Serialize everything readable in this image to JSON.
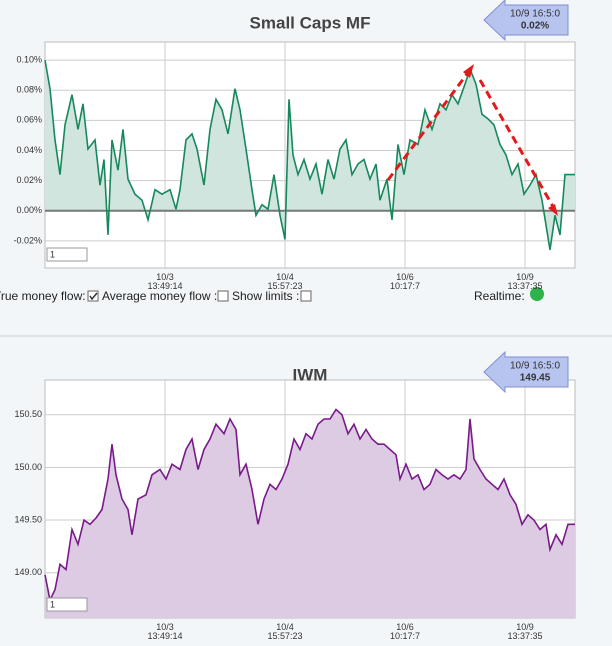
{
  "chart_data": [
    {
      "type": "area",
      "title": "Small Caps MF",
      "color": "#17885c",
      "fill": "#cfe5dd",
      "zero_line": true,
      "callout": {
        "time": "10/9 16:5:0",
        "value": "0.02%"
      },
      "input": "1",
      "xlim": [
        0,
        530
      ],
      "ylim": [
        -0.038,
        0.112
      ],
      "yticks": [
        {
          "value": -0.02,
          "label": "-0.02%"
        },
        {
          "value": 0,
          "label": "0.00%"
        },
        {
          "value": 0.02,
          "label": "0.02%"
        },
        {
          "value": 0.04,
          "label": "0.04%"
        },
        {
          "value": 0.06,
          "label": "0.06%"
        },
        {
          "value": 0.08,
          "label": "0.08%"
        },
        {
          "value": 0.1,
          "label": "0.10%"
        }
      ],
      "xticks": [
        {
          "value": 120,
          "label": "10/3 13:49:14"
        },
        {
          "value": 240,
          "label": "10/4 15:57:23"
        },
        {
          "value": 360,
          "label": "10/6 10:17:7"
        },
        {
          "value": 480,
          "label": "10/9 13:37:35"
        }
      ],
      "x": [
        0,
        5,
        10,
        15,
        20,
        27,
        33,
        38,
        43,
        50,
        55,
        59,
        63,
        67,
        73,
        78,
        83,
        90,
        97,
        103,
        110,
        117,
        125,
        131,
        135,
        141,
        147,
        152,
        159,
        165,
        171,
        177,
        183,
        190,
        195,
        201,
        207,
        211,
        217,
        223,
        229,
        235,
        240,
        244,
        248,
        253,
        259,
        265,
        271,
        277,
        283,
        289,
        295,
        301,
        307,
        313,
        319,
        325,
        331,
        335,
        342,
        347,
        353,
        359,
        365,
        373,
        380,
        387,
        395,
        401,
        407,
        413,
        420,
        425,
        431,
        437,
        443,
        449,
        455,
        461,
        467,
        473,
        479,
        485,
        491,
        497,
        505,
        510,
        515,
        520,
        530
      ],
      "values": [
        0.1,
        0.081,
        0.047,
        0.024,
        0.057,
        0.077,
        0.054,
        0.071,
        0.041,
        0.047,
        0.017,
        0.034,
        -0.016,
        0.047,
        0.027,
        0.054,
        0.021,
        0.011,
        0.007,
        -0.006,
        0.014,
        0.011,
        0.014,
        0.001,
        0.014,
        0.047,
        0.051,
        0.041,
        0.017,
        0.054,
        0.074,
        0.067,
        0.051,
        0.081,
        0.067,
        0.041,
        0.014,
        -0.003,
        0.004,
        0.001,
        0.024,
        -0.003,
        -0.019,
        0.074,
        0.037,
        0.024,
        0.034,
        0.021,
        0.031,
        0.011,
        0.034,
        0.021,
        0.041,
        0.047,
        0.024,
        0.031,
        0.034,
        0.021,
        0.031,
        0.007,
        0.021,
        -0.006,
        0.044,
        0.024,
        0.047,
        0.044,
        0.067,
        0.054,
        0.071,
        0.067,
        0.077,
        0.071,
        0.084,
        0.094,
        0.084,
        0.064,
        0.061,
        0.057,
        0.044,
        0.037,
        0.024,
        0.031,
        0.011,
        0.017,
        0.024,
        0.007,
        -0.026,
        -0.003,
        -0.016,
        0.024,
        0.024
      ]
    },
    {
      "type": "area",
      "title": "IWM",
      "color": "#7a1a8a",
      "fill": "#dccbe3",
      "zero_line": false,
      "callout": {
        "time": "10/9 16:5:0",
        "value": "149.45"
      },
      "input": "1",
      "xlim": [
        0,
        530
      ],
      "ylim": [
        148.57,
        150.83
      ],
      "yticks": [
        {
          "value": 149,
          "label": "149.00"
        },
        {
          "value": 149.5,
          "label": "149.50"
        },
        {
          "value": 150,
          "label": "150.00"
        },
        {
          "value": 150.5,
          "label": "150.50"
        }
      ],
      "xticks": [
        {
          "value": 120,
          "label": "10/3 13:49:14"
        },
        {
          "value": 240,
          "label": "10/4 15:57:23"
        },
        {
          "value": 360,
          "label": "10/6 10:17:7"
        },
        {
          "value": 480,
          "label": "10/9 13:37:35"
        }
      ],
      "x": [
        0,
        5,
        10,
        15,
        21,
        27,
        33,
        39,
        45,
        51,
        57,
        63,
        67,
        71,
        77,
        83,
        87,
        93,
        101,
        107,
        115,
        121,
        127,
        135,
        141,
        147,
        153,
        159,
        165,
        171,
        179,
        185,
        191,
        195,
        201,
        207,
        213,
        219,
        225,
        231,
        237,
        243,
        249,
        255,
        261,
        267,
        273,
        279,
        285,
        291,
        297,
        303,
        309,
        315,
        321,
        327,
        333,
        339,
        345,
        351,
        355,
        361,
        367,
        373,
        379,
        385,
        391,
        397,
        403,
        409,
        415,
        421,
        425,
        429,
        435,
        441,
        447,
        453,
        459,
        465,
        471,
        477,
        483,
        489,
        495,
        501,
        505,
        511,
        517,
        523,
        530
      ],
      "values": [
        148.98,
        148.74,
        148.84,
        149.08,
        149.03,
        149.41,
        149.27,
        149.5,
        149.46,
        149.52,
        149.6,
        149.89,
        150.22,
        149.93,
        149.7,
        149.6,
        149.36,
        149.7,
        149.74,
        149.93,
        149.98,
        149.89,
        150.03,
        149.98,
        150.17,
        150.27,
        149.98,
        150.17,
        150.27,
        150.41,
        150.32,
        150.46,
        150.36,
        149.93,
        150.03,
        149.79,
        149.46,
        149.7,
        149.84,
        149.79,
        149.89,
        150.03,
        150.27,
        150.17,
        150.32,
        150.27,
        150.41,
        150.46,
        150.46,
        150.55,
        150.5,
        150.32,
        150.41,
        150.27,
        150.36,
        150.27,
        150.22,
        150.22,
        150.17,
        150.12,
        149.89,
        150.03,
        149.89,
        149.93,
        149.79,
        149.84,
        149.98,
        149.93,
        149.89,
        149.93,
        149.89,
        149.98,
        150.46,
        150.08,
        149.98,
        149.89,
        149.84,
        149.79,
        149.89,
        149.74,
        149.65,
        149.46,
        149.55,
        149.5,
        149.41,
        149.46,
        149.22,
        149.36,
        149.27,
        149.46,
        149.46
      ]
    }
  ],
  "controls": {
    "true_money_flow": "True money flow:",
    "average_money_flow": "Average money flow :",
    "show_limits": "Show limits :",
    "realtime": "Realtime:"
  }
}
